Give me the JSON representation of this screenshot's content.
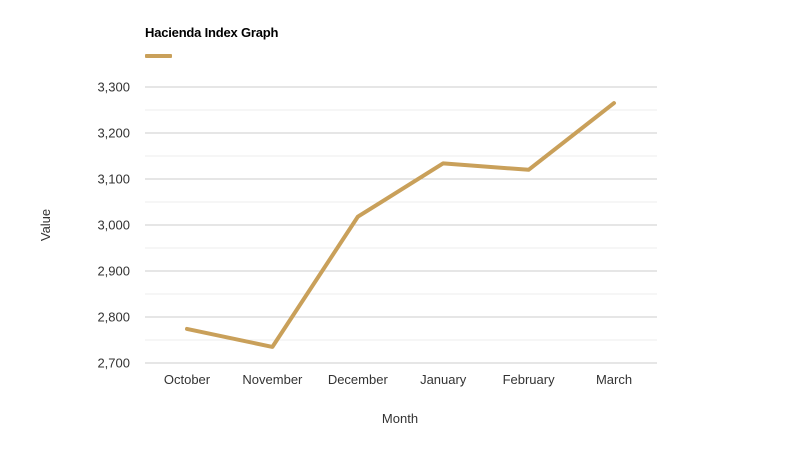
{
  "chart_data": {
    "type": "line",
    "title": "Hacienda Index Graph",
    "xlabel": "Month",
    "ylabel": "Value",
    "categories": [
      "October",
      "November",
      "December",
      "January",
      "February",
      "March"
    ],
    "series": [
      {
        "name": "Hacienda Index Graph",
        "values": [
          2774,
          2735,
          3018,
          3134,
          3120,
          3265
        ],
        "color": "#c9a05a"
      }
    ],
    "ylim": [
      2700,
      3300
    ],
    "yticks": [
      2700,
      2800,
      2900,
      3000,
      3100,
      3200,
      3300
    ],
    "ytick_labels": [
      "2,700",
      "2,800",
      "2,900",
      "3,000",
      "3,100",
      "3,200",
      "3,300"
    ],
    "grid": true,
    "legend": "top-left"
  },
  "colors": {
    "line": "#c9a05a",
    "grid_major": "#cccccc",
    "grid_minor": "#ececec",
    "text": "#333333"
  }
}
